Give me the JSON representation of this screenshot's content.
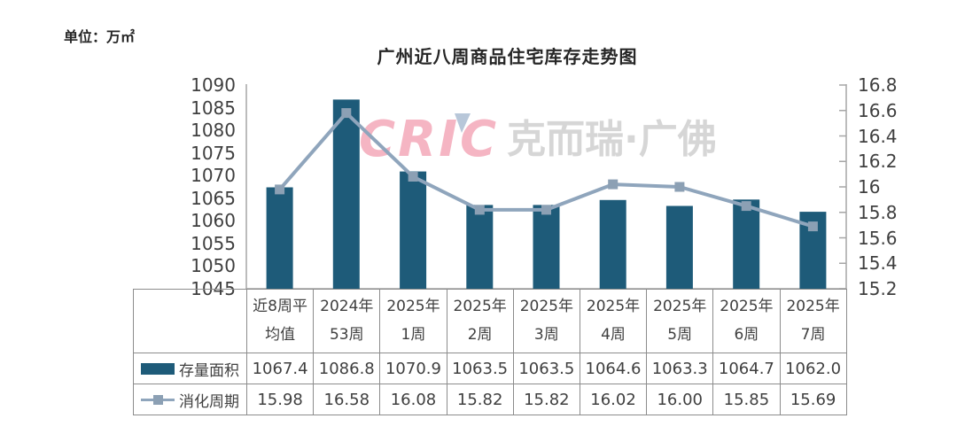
{
  "unit_label": "单位：万㎡",
  "chart": {
    "title": "广州近八周商品住宅库存走势图"
  },
  "watermark": {
    "logo_text": "CRIC",
    "brand_text": "克而瑞·广佛"
  },
  "colors": {
    "bar": "#1E5B79",
    "line": "#8FA5BC",
    "marker": "#8CA0B4",
    "axis_line": "#A6A6A6",
    "table_border": "#8C8C8C",
    "text": "#3F3F3F",
    "title_text": "#262626",
    "watermark_logo": "#F2A3B4",
    "watermark_text": "#D2D2D2"
  },
  "chart_data": {
    "type": "combo",
    "title": "广州近八周商品住宅库存走势图",
    "unit": "万㎡",
    "grid": false,
    "legend_position": "table-left",
    "categories": [
      "近8周平均值",
      "2024年53周",
      "2025年1周",
      "2025年2周",
      "2025年3周",
      "2025年4周",
      "2025年5周",
      "2025年6周",
      "2025年7周"
    ],
    "categories_display": [
      "近8周平\n均值",
      "2024年\n53周",
      "2025年\n1周",
      "2025年\n2周",
      "2025年\n3周",
      "2025年\n4周",
      "2025年\n5周",
      "2025年\n6周",
      "2025年\n7周"
    ],
    "series": [
      {
        "name": "存量面积",
        "type": "bar",
        "axis": "left",
        "color": "#1E5B79",
        "values": [
          1067.4,
          1086.8,
          1070.9,
          1063.5,
          1063.5,
          1064.6,
          1063.3,
          1064.7,
          1062.0
        ],
        "values_display": [
          "1067.4",
          "1086.8",
          "1070.9",
          "1063.5",
          "1063.5",
          "1064.6",
          "1063.3",
          "1064.7",
          "1062.0"
        ]
      },
      {
        "name": "消化周期",
        "type": "line",
        "axis": "right",
        "color": "#8FA5BC",
        "marker": "square",
        "marker_color": "#8CA0B4",
        "values": [
          15.98,
          16.58,
          16.08,
          15.82,
          15.82,
          16.02,
          16.0,
          15.85,
          15.69
        ],
        "values_display": [
          "15.98",
          "16.58",
          "16.08",
          "15.82",
          "15.82",
          "16.02",
          "16.00",
          "15.85",
          "15.69"
        ]
      }
    ],
    "left_axis": {
      "min": 1045,
      "max": 1090,
      "tick_labels": [
        "1090",
        "1085",
        "1080",
        "1075",
        "1070",
        "1065",
        "1060",
        "1055",
        "1050",
        "1045"
      ]
    },
    "right_axis": {
      "min": 15.2,
      "max": 16.8,
      "tick_labels": [
        "16.8",
        "16.6",
        "16.4",
        "16.2",
        "16",
        "15.8",
        "15.6",
        "15.4",
        "15.2"
      ]
    }
  }
}
